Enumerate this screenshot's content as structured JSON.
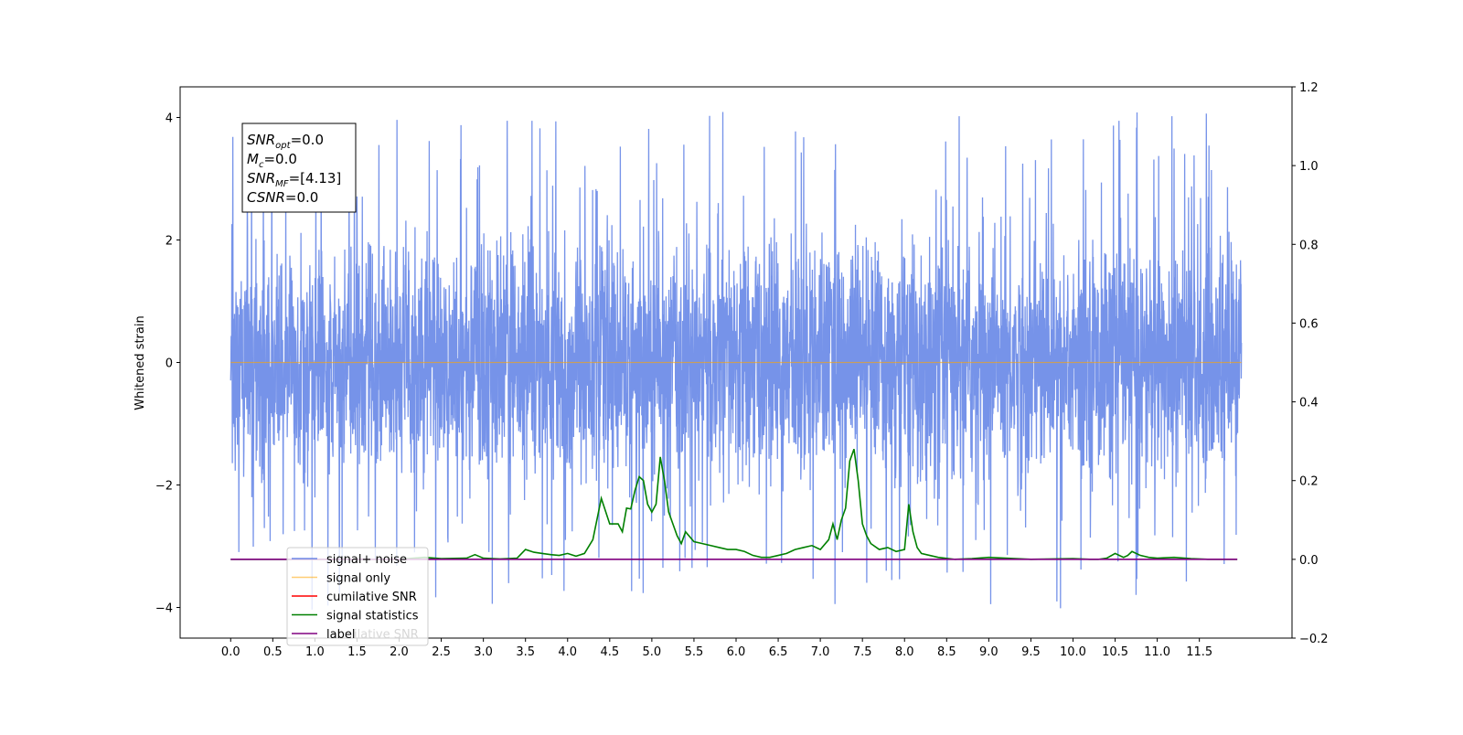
{
  "chart_data": {
    "type": "line",
    "ylabel": "Whitened strain",
    "xticks": [
      "0.0",
      "0.5",
      "1.0",
      "1.5",
      "2.0",
      "2.5",
      "3.0",
      "3.5",
      "4.0",
      "4.5",
      "5.0",
      "5.5",
      "6.0",
      "6.5",
      "7.0",
      "7.5",
      "8.0",
      "8.5",
      "9.0",
      "9.5",
      "10.0",
      "10.5",
      "11.0",
      "11.5"
    ],
    "xlim": [
      -0.6,
      12.6
    ],
    "ylim_left": [
      -4.5,
      4.5
    ],
    "ylim_right": [
      -0.2,
      1.2
    ],
    "yticks_left": [
      "−4",
      "−2",
      "0",
      "2",
      "4"
    ],
    "yticks_right": [
      "−0.2",
      "0.0",
      "0.2",
      "0.4",
      "0.6",
      "0.8",
      "1.0",
      "1.2"
    ],
    "annotation": [
      {
        "sym": "SNR",
        "sub": "opt",
        "val": "=0.0"
      },
      {
        "sym": "M",
        "sub": "c",
        "val": "=0.0"
      },
      {
        "sym": "SNR",
        "sub": "MF",
        "val": "=[4.13]"
      },
      {
        "sym": "CSNR",
        "sub": "",
        "val": "=0.0"
      }
    ],
    "legend": {
      "placement": "lower-left",
      "entries": [
        {
          "label": "signal+ noise",
          "color": "#4169e1"
        },
        {
          "label": "signal only",
          "color": "#ffa500"
        },
        {
          "label": "cumilative SNR",
          "color": "#ff0000"
        },
        {
          "label": "signal statistics",
          "color": "#008000"
        },
        {
          "label": "label",
          "color": "#800080"
        }
      ],
      "hidden_label": "cumilative SNR"
    },
    "series": [
      {
        "name": "signal+ noise",
        "axis": "left",
        "color": "#4169e1",
        "x_range": [
          0.0,
          12.0
        ],
        "envelope": {
          "typical_peak": 2.5,
          "occasional_extreme": 4.1
        },
        "mean": 0.0
      },
      {
        "name": "signal only",
        "axis": "left",
        "color": "#ffa500",
        "x": [
          0.0,
          12.0
        ],
        "y": [
          0.0,
          0.0
        ]
      },
      {
        "name": "signal statistics",
        "axis": "right",
        "color": "#008000",
        "x": [
          0.0,
          0.5,
          1.0,
          1.5,
          2.0,
          2.3,
          2.5,
          2.8,
          2.9,
          3.0,
          3.2,
          3.4,
          3.5,
          3.6,
          3.7,
          3.8,
          3.9,
          4.0,
          4.1,
          4.2,
          4.3,
          4.4,
          4.5,
          4.6,
          4.65,
          4.7,
          4.75,
          4.8,
          4.85,
          4.9,
          4.95,
          5.0,
          5.05,
          5.1,
          5.15,
          5.2,
          5.25,
          5.3,
          5.35,
          5.4,
          5.5,
          5.6,
          5.7,
          5.8,
          5.9,
          6.0,
          6.1,
          6.2,
          6.3,
          6.4,
          6.5,
          6.6,
          6.7,
          6.8,
          6.9,
          7.0,
          7.1,
          7.15,
          7.2,
          7.25,
          7.3,
          7.35,
          7.4,
          7.45,
          7.5,
          7.55,
          7.6,
          7.7,
          7.8,
          7.9,
          8.0,
          8.05,
          8.1,
          8.15,
          8.2,
          8.3,
          8.4,
          8.6,
          8.8,
          9.0,
          9.2,
          9.5,
          10.0,
          10.2,
          10.3,
          10.4,
          10.5,
          10.6,
          10.65,
          10.7,
          10.8,
          10.9,
          11.0,
          11.2,
          11.4,
          11.6,
          11.95
        ],
        "y": [
          0.0,
          0.0,
          0.0,
          0.0,
          0.0,
          0.005,
          0.002,
          0.003,
          0.012,
          0.003,
          0.001,
          0.003,
          0.025,
          0.018,
          0.015,
          0.012,
          0.01,
          0.015,
          0.008,
          0.015,
          0.05,
          0.155,
          0.09,
          0.09,
          0.07,
          0.13,
          0.128,
          0.175,
          0.21,
          0.2,
          0.14,
          0.12,
          0.14,
          0.26,
          0.2,
          0.12,
          0.09,
          0.06,
          0.04,
          0.07,
          0.045,
          0.04,
          0.035,
          0.03,
          0.025,
          0.025,
          0.02,
          0.01,
          0.005,
          0.005,
          0.01,
          0.015,
          0.025,
          0.03,
          0.035,
          0.025,
          0.05,
          0.09,
          0.05,
          0.1,
          0.13,
          0.25,
          0.28,
          0.2,
          0.09,
          0.06,
          0.04,
          0.025,
          0.03,
          0.02,
          0.025,
          0.14,
          0.07,
          0.03,
          0.015,
          0.01,
          0.005,
          0.0,
          0.002,
          0.005,
          0.003,
          0.0,
          0.002,
          0.0,
          0.0,
          0.003,
          0.015,
          0.005,
          0.01,
          0.02,
          0.01,
          0.005,
          0.003,
          0.005,
          0.002,
          0.0,
          0.0
        ]
      },
      {
        "name": "label",
        "axis": "right",
        "color": "#800080",
        "x": [
          0.0,
          11.95
        ],
        "y": [
          0.0,
          0.0
        ]
      }
    ]
  }
}
